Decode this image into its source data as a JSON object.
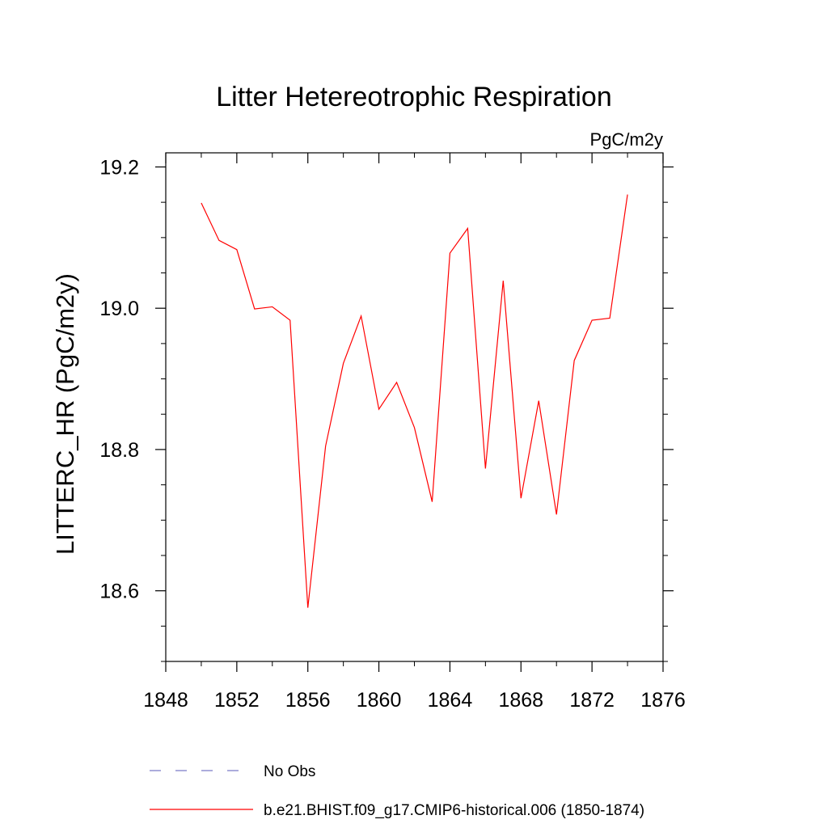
{
  "chart_data": {
    "type": "line",
    "title": "Litter Hetereotrophic Respiration",
    "units": "PgC/m2y",
    "xlabel": "",
    "ylabel": "LITTERC_HR  (PgC/m2y)",
    "xlim": [
      1848,
      1876
    ],
    "ylim": [
      18.5,
      19.22
    ],
    "xticks": [
      1848,
      1852,
      1856,
      1860,
      1864,
      1868,
      1872,
      1876
    ],
    "xtick_labels": [
      "1848",
      "1852",
      "1856",
      "1860",
      "1864",
      "1868",
      "1872",
      "1876"
    ],
    "yticks": [
      18.6,
      18.8,
      19.0,
      19.2
    ],
    "ytick_labels": [
      "18.6",
      "18.8",
      "19.0",
      "19.2"
    ],
    "y_minor_step": 0.05,
    "x_minor_step": 2,
    "grid": false,
    "legend_position": "bottom",
    "series": [
      {
        "name": "No Obs",
        "style": "dashed",
        "color": "#7b7bc8",
        "x": [],
        "values": []
      },
      {
        "name": "b.e21.BHIST.f09_g17.CMIP6-historical.006 (1850-1874)",
        "style": "solid",
        "color": "#ff0000",
        "x": [
          1850,
          1851,
          1852,
          1853,
          1854,
          1855,
          1856,
          1857,
          1858,
          1859,
          1860,
          1861,
          1862,
          1863,
          1864,
          1865,
          1866,
          1867,
          1868,
          1869,
          1870,
          1871,
          1872,
          1873,
          1874
        ],
        "values": [
          19.149,
          19.096,
          19.083,
          18.999,
          19.002,
          18.983,
          18.576,
          18.805,
          18.922,
          18.989,
          18.857,
          18.895,
          18.831,
          18.726,
          19.078,
          19.113,
          18.773,
          19.039,
          18.731,
          18.869,
          18.708,
          18.926,
          18.983,
          18.986,
          19.161
        ]
      }
    ]
  }
}
